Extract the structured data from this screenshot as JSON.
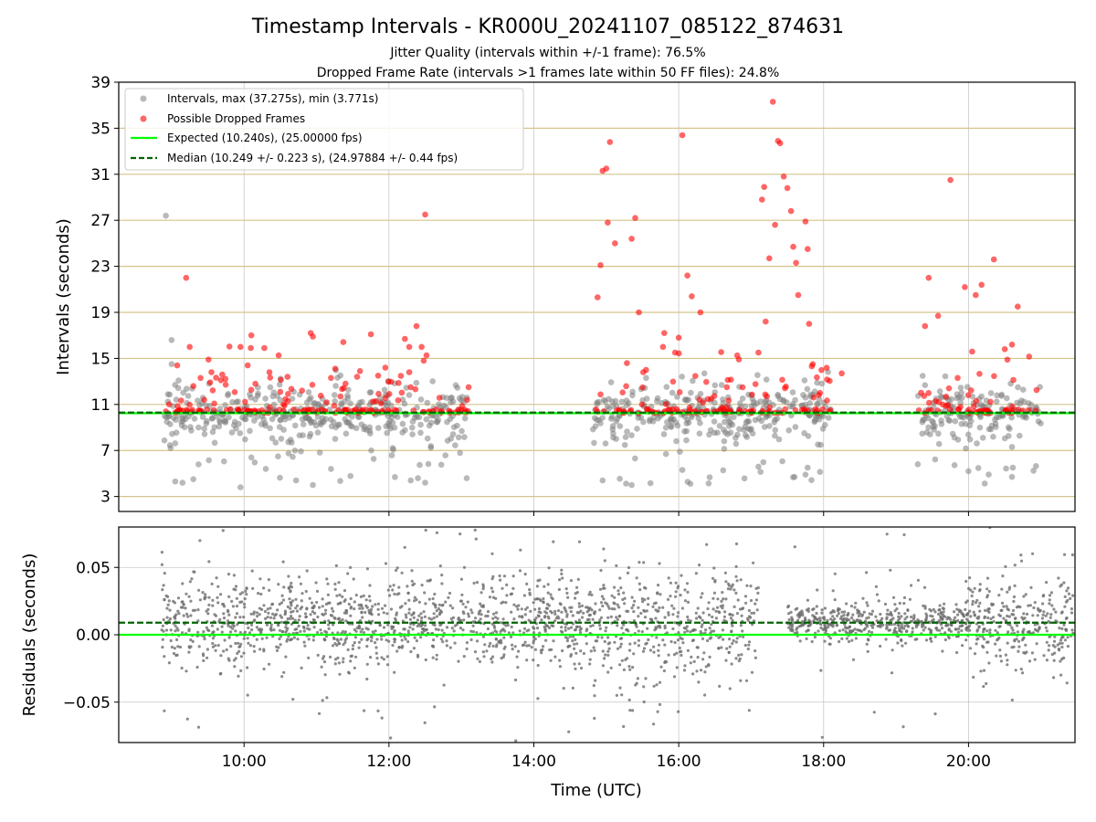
{
  "chart_data": [
    {
      "type": "scatter",
      "title": "Timestamp Intervals - KR000U_20241107_085122_874631",
      "subtitle_1": "Jitter Quality (intervals within +/-1 frame): 76.5%",
      "subtitle_2": "Dropped Frame Rate (intervals >1 frames late within 50 FF files): 24.8%",
      "ylabel": "Intervals (seconds)",
      "xlim_hours": [
        8.27,
        21.47
      ],
      "ylim": [
        1.7,
        39
      ],
      "yticks": [
        3,
        7,
        11,
        15,
        19,
        23,
        27,
        31,
        35,
        39
      ],
      "hlines_gold": [
        3,
        7,
        11,
        15,
        19,
        23,
        27,
        31,
        35
      ],
      "grid": true,
      "legend_position": "upper-left",
      "legend": [
        "Intervals, max (37.275s), min (3.771s)",
        "Possible Dropped Frames",
        "Expected (10.240s), (25.00000 fps)",
        "Median (10.249 +/- 0.223 s), (24.97884 +/- 0.44 fps)"
      ],
      "expected": 10.24,
      "median": 10.249,
      "max_interval": 37.275,
      "min_interval": 3.771,
      "colors": {
        "intervals": "#808080",
        "dropped": "#ff0000",
        "expected": "#00ff00",
        "median": "#006400",
        "gold": "#d4c48a"
      },
      "clusters": [
        {
          "start": 8.9,
          "end": 13.1
        },
        {
          "start": 14.8,
          "end": 18.1
        },
        {
          "start": 19.3,
          "end": 21.0
        }
      ],
      "dropped_points": [
        [
          8.92,
          10.4
        ],
        [
          9.05,
          10.3
        ],
        [
          9.12,
          10.5
        ],
        [
          9.2,
          22.0
        ],
        [
          9.25,
          16.0
        ],
        [
          9.3,
          12.6
        ],
        [
          9.45,
          11.4
        ],
        [
          9.55,
          13.8
        ],
        [
          9.7,
          13.6
        ],
        [
          9.95,
          16.0
        ],
        [
          10.05,
          14.4
        ],
        [
          10.1,
          17.0
        ],
        [
          10.2,
          10.4
        ],
        [
          10.28,
          15.9
        ],
        [
          10.35,
          13.8
        ],
        [
          10.5,
          12.1
        ],
        [
          10.6,
          13.4
        ],
        [
          10.8,
          12.2
        ],
        [
          10.92,
          17.2
        ],
        [
          10.95,
          16.9
        ],
        [
          11.0,
          10.3
        ],
        [
          11.2,
          13.3
        ],
        [
          11.4,
          12.8
        ],
        [
          11.6,
          13.9
        ],
        [
          11.85,
          13.5
        ],
        [
          11.95,
          14.2
        ],
        [
          12.22,
          16.7
        ],
        [
          12.28,
          16.0
        ],
        [
          12.3,
          12.5
        ],
        [
          12.38,
          17.8
        ],
        [
          12.45,
          16.0
        ],
        [
          12.48,
          14.8
        ],
        [
          12.5,
          27.5
        ],
        [
          12.55,
          10.4
        ],
        [
          13.1,
          12.5
        ],
        [
          14.88,
          20.3
        ],
        [
          14.92,
          23.1
        ],
        [
          14.95,
          31.3
        ],
        [
          15.0,
          31.5
        ],
        [
          15.02,
          26.8
        ],
        [
          15.05,
          33.8
        ],
        [
          15.12,
          25.0
        ],
        [
          15.25,
          10.3
        ],
        [
          15.35,
          25.4
        ],
        [
          15.4,
          27.2
        ],
        [
          15.45,
          19.0
        ],
        [
          15.55,
          14.0
        ],
        [
          15.8,
          17.2
        ],
        [
          15.95,
          15.5
        ],
        [
          16.0,
          16.8
        ],
        [
          16.05,
          34.4
        ],
        [
          16.12,
          22.2
        ],
        [
          16.18,
          20.4
        ],
        [
          16.3,
          19.0
        ],
        [
          16.38,
          10.4
        ],
        [
          16.45,
          11.5
        ],
        [
          17.1,
          15.5
        ],
        [
          17.15,
          28.8
        ],
        [
          17.18,
          29.9
        ],
        [
          17.2,
          18.2
        ],
        [
          17.25,
          23.7
        ],
        [
          17.3,
          37.3
        ],
        [
          17.33,
          26.6
        ],
        [
          17.37,
          33.9
        ],
        [
          17.4,
          33.7
        ],
        [
          17.45,
          30.8
        ],
        [
          17.5,
          29.8
        ],
        [
          17.55,
          27.8
        ],
        [
          17.58,
          24.7
        ],
        [
          17.62,
          23.3
        ],
        [
          17.65,
          20.5
        ],
        [
          17.75,
          26.9
        ],
        [
          17.78,
          24.5
        ],
        [
          17.8,
          18.0
        ],
        [
          17.85,
          14.5
        ],
        [
          17.95,
          12.0
        ],
        [
          18.25,
          13.7
        ],
        [
          19.4,
          17.8
        ],
        [
          19.45,
          22.0
        ],
        [
          19.58,
          18.7
        ],
        [
          19.75,
          30.5
        ],
        [
          19.85,
          13.3
        ],
        [
          19.95,
          21.2
        ],
        [
          20.05,
          15.6
        ],
        [
          20.1,
          20.5
        ],
        [
          20.18,
          21.4
        ],
        [
          20.28,
          10.3
        ],
        [
          20.35,
          23.6
        ],
        [
          20.5,
          15.8
        ],
        [
          20.6,
          16.2
        ],
        [
          20.68,
          19.5
        ]
      ]
    },
    {
      "type": "scatter",
      "title": "",
      "xlabel": "Time (UTC)",
      "ylabel": "Residuals (seconds)",
      "xlim_hours": [
        8.27,
        21.47
      ],
      "ylim": [
        -0.08,
        0.08
      ],
      "yticks": [
        -0.05,
        0.0,
        0.05
      ],
      "ytick_labels": [
        "−0.05",
        "0.00",
        "0.05"
      ],
      "xticks_hours": [
        10,
        12,
        14,
        16,
        18,
        20
      ],
      "xtick_labels": [
        "10:00",
        "12:00",
        "14:00",
        "16:00",
        "18:00",
        "20:00"
      ],
      "grid": true,
      "expected_residual": 0.0,
      "median_residual": 0.009,
      "gaps": [
        {
          "start": 17.1,
          "end": 17.5
        }
      ]
    }
  ]
}
